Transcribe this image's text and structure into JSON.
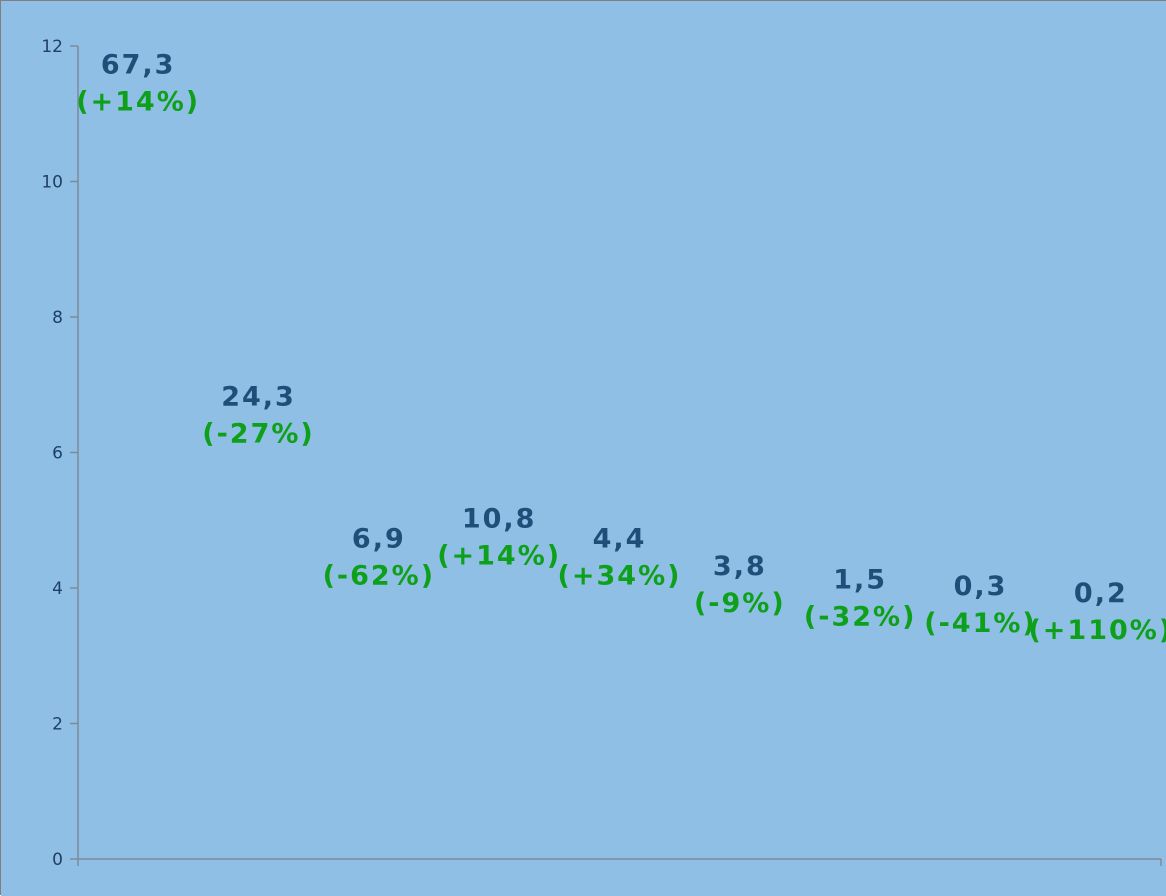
{
  "colors": {
    "background": "#8fbfe5",
    "axis": "#7d8a99",
    "value_label": "#1f4e79",
    "change_label": "#0ea01a"
  },
  "chart_data": {
    "type": "scatter",
    "title": "",
    "xlabel": "",
    "ylabel": "",
    "ylim": [
      0,
      12
    ],
    "yticks": [
      "0",
      "2",
      "4",
      "6",
      "8",
      "10",
      "12"
    ],
    "grid": false,
    "legend": "none",
    "points": [
      {
        "y": 11.3,
        "label": "67,3",
        "change": "(+14%)"
      },
      {
        "y": 6.4,
        "label": "24,3",
        "change": "(-27%)"
      },
      {
        "y": 4.3,
        "label": "6,9",
        "change": "(-62%)"
      },
      {
        "y": 4.6,
        "label": "10,8",
        "change": "(+14%)"
      },
      {
        "y": 4.3,
        "label": "4,4",
        "change": "(+34%)"
      },
      {
        "y": 3.9,
        "label": "3,8",
        "change": "(-9%)"
      },
      {
        "y": 3.7,
        "label": "1,5",
        "change": "(-32%)"
      },
      {
        "y": 3.6,
        "label": "0,3",
        "change": "(-41%)"
      },
      {
        "y": 3.5,
        "label": "0,2",
        "change": "(+110%)"
      }
    ]
  }
}
